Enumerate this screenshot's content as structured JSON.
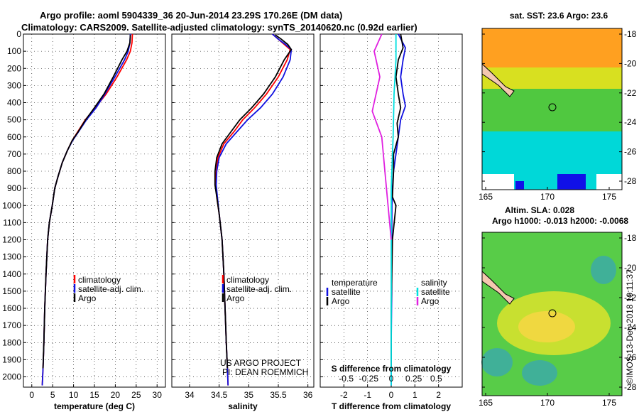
{
  "title": {
    "line1": "Argo profile: aoml 5904339_36 20-Jun-2014 23.29S 170.26E (DM data)",
    "line2": "Climatology: CARS2009. Satellite-adjusted climatology: synTS_20140620.nc (0.92d earlier)"
  },
  "colors": {
    "climatology": "#ff0000",
    "satellite": "#1010e0",
    "argo": "#000000",
    "sat_salinity": "#00e0e0",
    "argo_salinity": "#e020e0"
  },
  "chart_data": [
    {
      "type": "line",
      "name": "temperature-panel",
      "xlabel": "temperature (deg C)",
      "xlim": [
        -2,
        32
      ],
      "ylim": [
        2060,
        0
      ],
      "xticks": [
        "0",
        "5",
        "10",
        "15",
        "20",
        "25",
        "30"
      ],
      "yticks": [
        "0",
        "100",
        "200",
        "300",
        "400",
        "500",
        "600",
        "700",
        "800",
        "900",
        "1000",
        "1100",
        "1200",
        "1300",
        "1400",
        "1500",
        "1600",
        "1700",
        "1800",
        "1900",
        "2000"
      ],
      "legend": [
        "climatology",
        "satellite-adj. clim.",
        "Argo"
      ],
      "series": [
        {
          "name": "climatology",
          "x": [
            24.1,
            24.0,
            23.6,
            22.7,
            20.4,
            17.8,
            15.2,
            12.8,
            11.0,
            9.7,
            8.5,
            7.3,
            6.3,
            5.5,
            4.9,
            4.2,
            3.8,
            3.4,
            3.1,
            2.9,
            2.7,
            2.5
          ],
          "y": [
            0,
            50,
            100,
            150,
            250,
            350,
            430,
            500,
            570,
            620,
            680,
            750,
            830,
            900,
            1000,
            1100,
            1200,
            1400,
            1600,
            1800,
            1950,
            2050
          ]
        },
        {
          "name": "satellite-adj. clim.",
          "x": [
            23.6,
            23.5,
            23.1,
            22.2,
            19.9,
            17.5,
            15.4,
            13.1,
            11.2,
            9.8,
            8.5,
            7.3,
            6.3,
            5.5,
            4.9,
            4.2,
            3.8,
            3.4,
            3.1,
            2.9,
            2.7,
            2.5
          ],
          "y": [
            0,
            50,
            100,
            150,
            250,
            350,
            430,
            500,
            570,
            620,
            680,
            750,
            830,
            900,
            1000,
            1100,
            1200,
            1400,
            1600,
            1800,
            1950,
            2050
          ]
        },
        {
          "name": "Argo",
          "x": [
            23.6,
            23.5,
            22.8,
            21.6,
            19.5,
            17.3,
            15.0,
            12.9,
            11.1,
            9.7,
            8.5,
            7.3,
            6.3,
            5.5,
            4.9,
            4.2,
            3.8,
            3.4,
            3.1,
            2.9,
            2.7
          ],
          "y": [
            5,
            50,
            100,
            150,
            250,
            350,
            430,
            500,
            570,
            620,
            680,
            750,
            830,
            900,
            1000,
            1100,
            1200,
            1400,
            1600,
            1800,
            1950
          ]
        }
      ]
    },
    {
      "type": "line",
      "name": "salinity-panel",
      "xlabel": "salinity",
      "xlim": [
        33.7,
        36.1
      ],
      "ylim": [
        2060,
        0
      ],
      "xticks": [
        "34",
        "34.5",
        "35",
        "35.5",
        "36"
      ],
      "legend": [
        "climatology",
        "satellite-adj. clim.",
        "Argo"
      ],
      "annotation": [
        "US ARGO PROJECT",
        "PI: DEAN ROEMMICH"
      ],
      "series": [
        {
          "name": "climatology",
          "x": [
            35.4,
            35.5,
            35.6,
            35.7,
            35.65,
            35.5,
            35.3,
            35.1,
            34.9,
            34.75,
            34.58,
            34.48,
            34.45,
            34.44,
            34.46,
            34.5,
            34.55,
            34.58,
            34.6,
            34.62,
            34.64,
            34.65
          ],
          "y": [
            0,
            30,
            60,
            90,
            150,
            250,
            350,
            430,
            500,
            570,
            640,
            720,
            800,
            880,
            950,
            1050,
            1200,
            1400,
            1600,
            1800,
            1950,
            2050
          ]
        },
        {
          "name": "satellite-adj. clim.",
          "x": [
            35.4,
            35.5,
            35.62,
            35.72,
            35.7,
            35.58,
            35.4,
            35.2,
            34.98,
            34.8,
            34.62,
            34.5,
            34.46,
            34.45,
            34.47,
            34.5,
            34.55,
            34.58,
            34.6,
            34.62,
            34.64,
            34.65
          ],
          "y": [
            0,
            30,
            60,
            90,
            150,
            250,
            350,
            430,
            500,
            570,
            640,
            720,
            800,
            880,
            950,
            1050,
            1200,
            1400,
            1600,
            1800,
            1950,
            2050
          ]
        },
        {
          "name": "Argo",
          "x": [
            35.45,
            35.55,
            35.66,
            35.72,
            35.6,
            35.45,
            35.25,
            35.05,
            34.85,
            34.7,
            34.55,
            34.46,
            34.43,
            34.43,
            34.46,
            34.5,
            34.55,
            34.58,
            34.6,
            34.62,
            34.64
          ],
          "y": [
            5,
            30,
            60,
            90,
            150,
            250,
            350,
            430,
            500,
            570,
            640,
            720,
            800,
            880,
            950,
            1050,
            1200,
            1400,
            1600,
            1800,
            1950
          ]
        }
      ]
    },
    {
      "type": "line",
      "name": "difference-panel",
      "xlabel": "T difference from climatology",
      "xlabel2": "S difference from climatology",
      "xlim": [
        -3,
        3
      ],
      "ylim": [
        2060,
        0
      ],
      "xticks": [
        "-2",
        "-1",
        "0",
        "1",
        "2"
      ],
      "sticks": [
        "-0.5",
        "-0.25",
        "0",
        "0.25",
        "0.5"
      ],
      "legend_temperature": [
        "temperature",
        "satellite",
        "Argo"
      ],
      "legend_salinity": [
        "salinity",
        "satellite",
        "Argo"
      ],
      "series": [
        {
          "name": "T satellite",
          "x": [
            0.3,
            0.6,
            0.5,
            0.4,
            0.5,
            0.6,
            0.4,
            0.3,
            0.2,
            0.1,
            0.05,
            0.03,
            0.02,
            0.02,
            0,
            0
          ],
          "y": [
            0,
            80,
            150,
            250,
            350,
            420,
            500,
            600,
            700,
            800,
            900,
            1000,
            1200,
            1500,
            1800,
            2050
          ]
        },
        {
          "name": "T Argo",
          "x": [
            0.4,
            0.5,
            0.3,
            0.2,
            0.3,
            0.4,
            0.25,
            0.3,
            0.1,
            0.1,
            0.05,
            0.2,
            0.05,
            0,
            0
          ],
          "y": [
            0,
            80,
            150,
            250,
            350,
            430,
            520,
            600,
            700,
            800,
            950,
            1000,
            1200,
            1600,
            1950
          ]
        },
        {
          "name": "S satellite",
          "x": [
            0.05,
            0.05,
            0.03,
            0.02,
            0,
            0,
            0
          ],
          "y": [
            0,
            150,
            350,
            600,
            900,
            1500,
            2050
          ]
        },
        {
          "name": "S Argo",
          "x": [
            -0.1,
            -0.18,
            -0.12,
            -0.2,
            -0.1,
            -0.05,
            0
          ],
          "y": [
            0,
            100,
            250,
            450,
            600,
            900,
            1200
          ]
        }
      ]
    }
  ],
  "maps": {
    "top": {
      "title": "sat. SST: 23.6 Argo: 23.6",
      "lon_ticks": [
        "165",
        "170",
        "175"
      ],
      "lat_ticks": [
        "-18",
        "-20",
        "-22",
        "-24",
        "-26",
        "-28"
      ],
      "marker": {
        "lon": 170.26,
        "lat": -23.29
      }
    },
    "bottom": {
      "title1": "Altim. SLA: 0.028",
      "title2": "Argo h1000: -0.013 h2000: -0.0068",
      "lon_ticks": [
        "165",
        "170",
        "175"
      ],
      "lat_ticks": [
        "-18",
        "-20",
        "-22",
        "-24",
        "-26",
        "-28"
      ],
      "marker": {
        "lon": 170.26,
        "lat": -23.29
      }
    }
  },
  "side_label": "©IMOS 13-Dec-2018 19:11:37"
}
